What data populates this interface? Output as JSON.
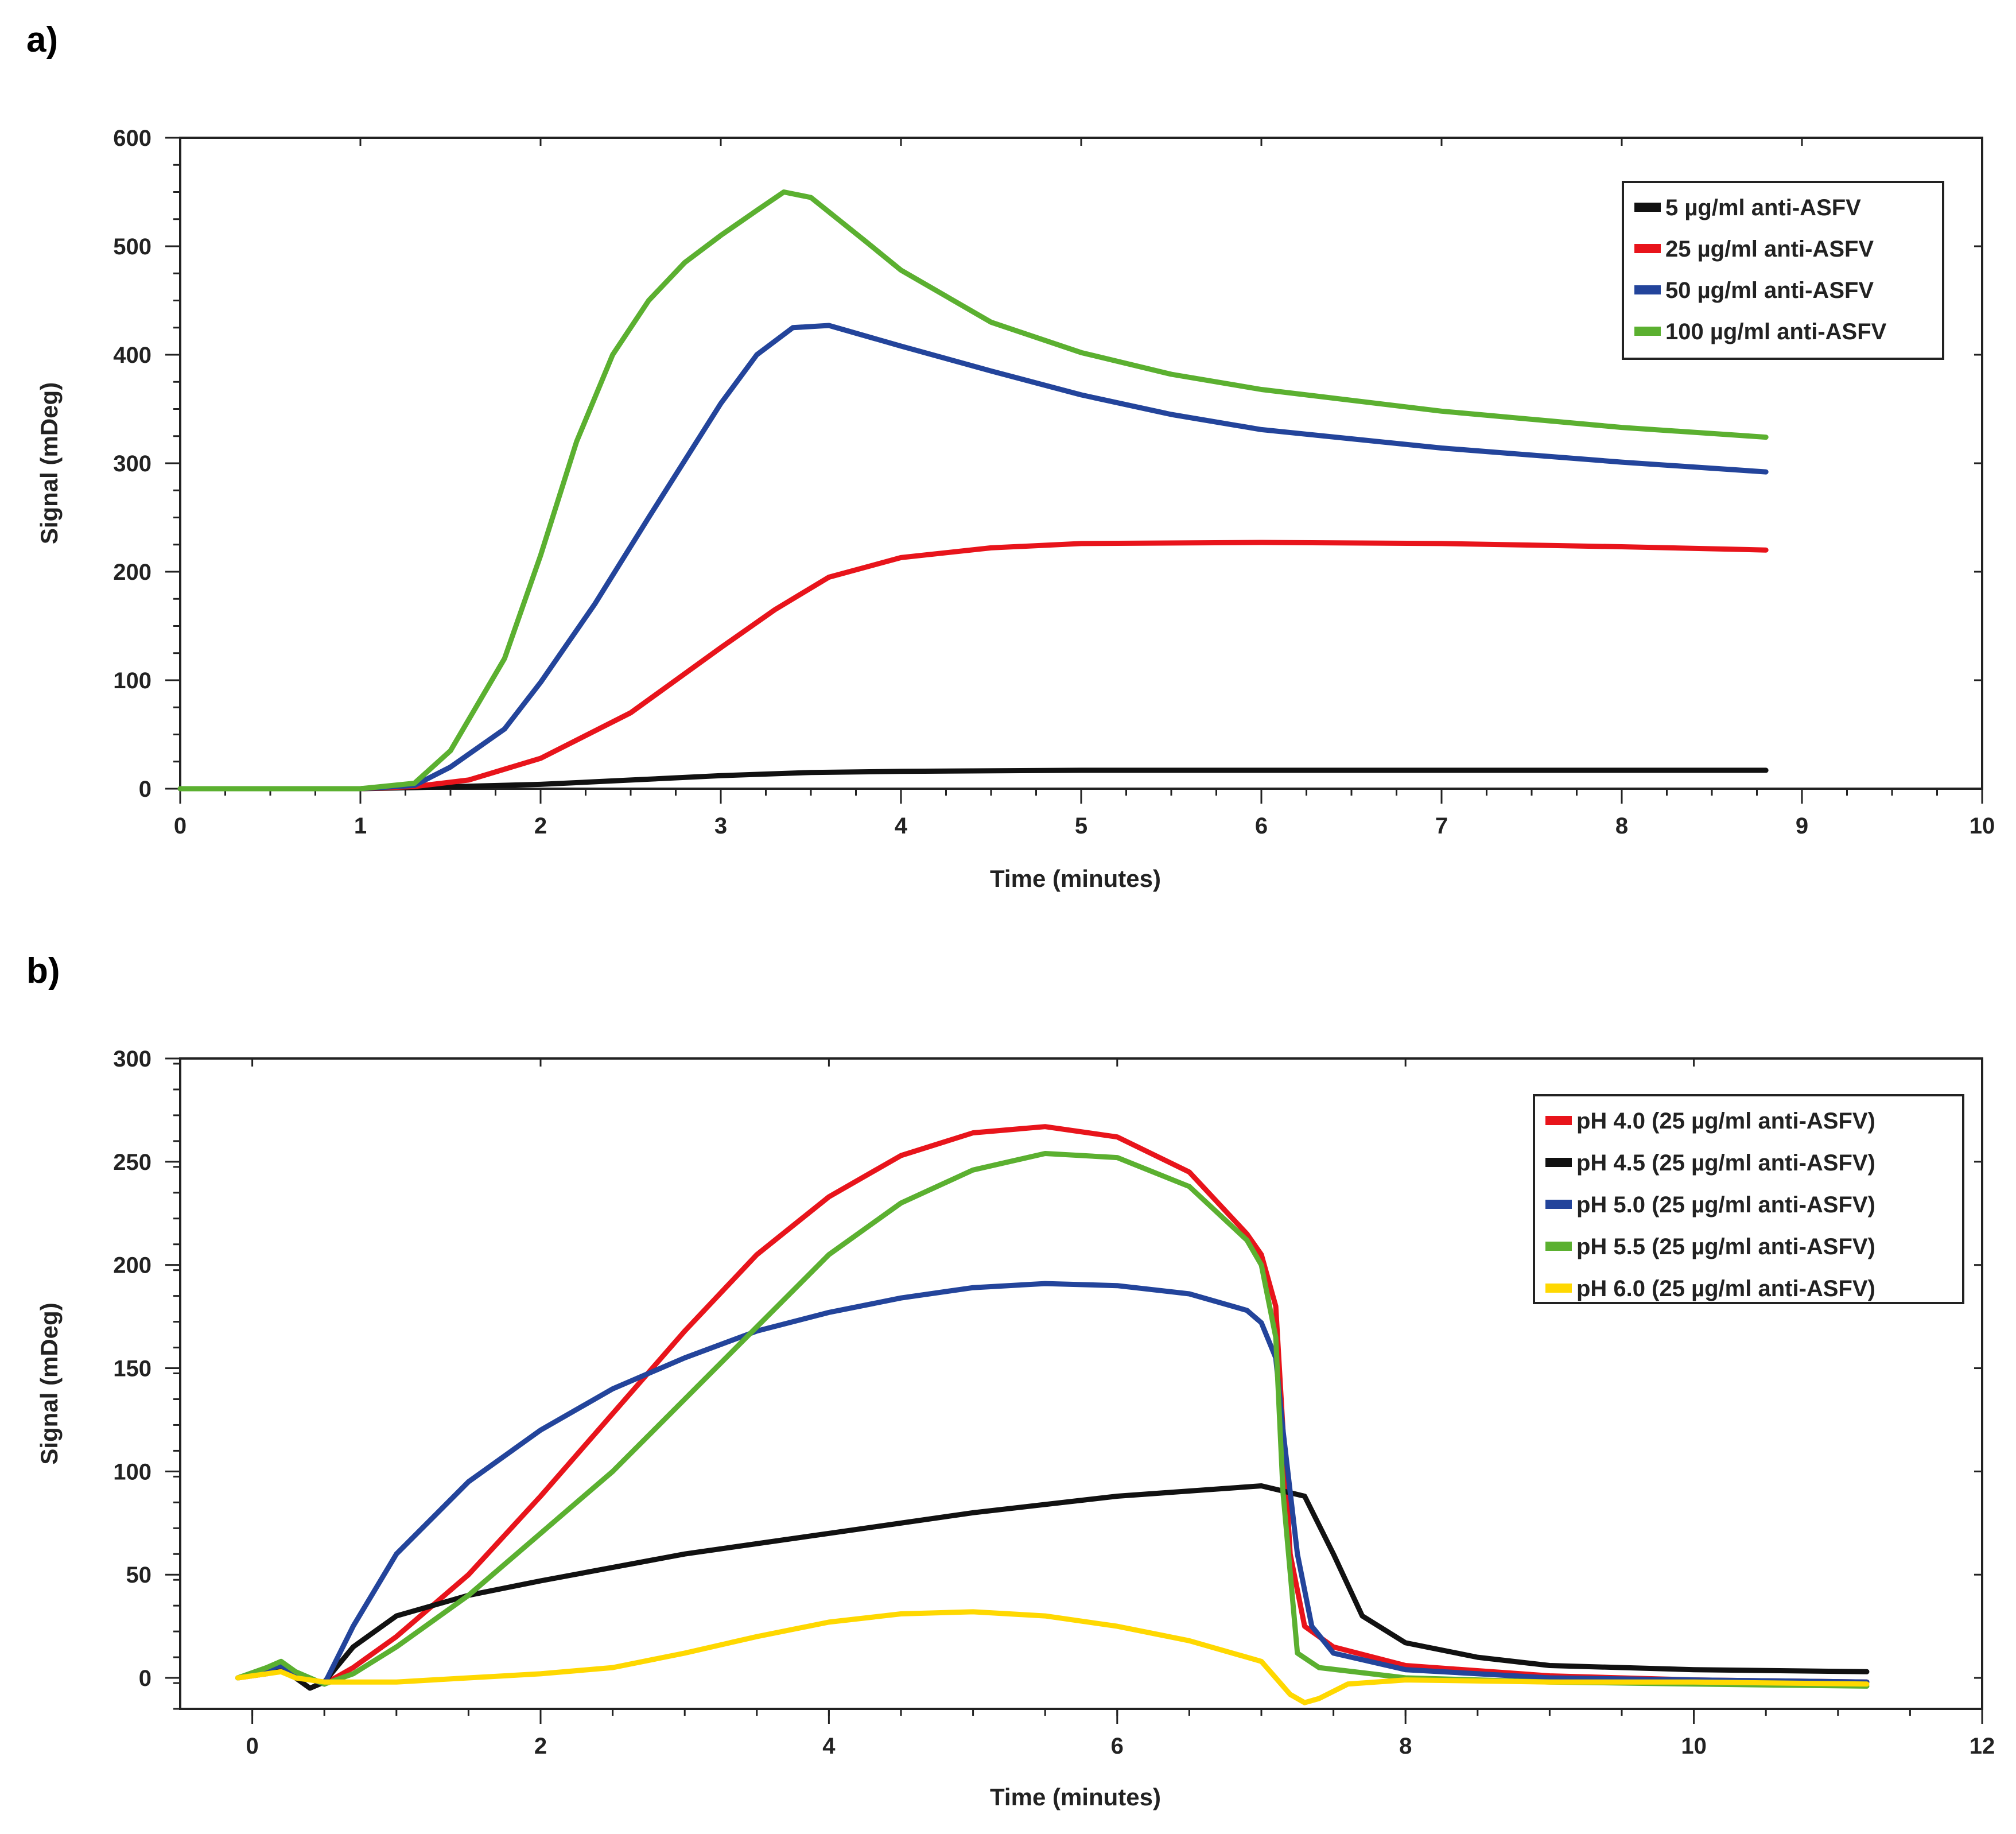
{
  "chart_data": [
    {
      "type": "line",
      "panel_label": "a)",
      "title": "",
      "xlabel": "Time (minutes)",
      "ylabel": "Signal (mDeg)",
      "xlim": [
        0,
        10
      ],
      "ylim": [
        0,
        600
      ],
      "xticks": [
        "0",
        "1",
        "2",
        "3",
        "4",
        "5",
        "6",
        "7",
        "8",
        "9",
        "10"
      ],
      "yticks": [
        "0",
        "100",
        "200",
        "300",
        "400",
        "500",
        "600"
      ],
      "legend_position": "top-right",
      "grid": false,
      "series": [
        {
          "name": "5 µg/ml anti-ASFV",
          "color": "#111111",
          "x": [
            0,
            1.0,
            1.3,
            2.0,
            2.5,
            3.0,
            3.5,
            4.0,
            5.0,
            6.0,
            7.0,
            8.0,
            8.8
          ],
          "y": [
            0,
            0,
            1,
            4,
            8,
            12,
            15,
            16,
            17,
            17,
            17,
            17,
            17
          ]
        },
        {
          "name": "25 µg/ml anti-ASFV",
          "color": "#e8141b",
          "x": [
            0,
            1.0,
            1.3,
            1.6,
            2.0,
            2.5,
            3.0,
            3.3,
            3.6,
            4.0,
            4.5,
            5.0,
            6.0,
            7.0,
            8.0,
            8.8
          ],
          "y": [
            0,
            0,
            2,
            8,
            28,
            70,
            130,
            165,
            195,
            213,
            222,
            226,
            227,
            226,
            223,
            220
          ]
        },
        {
          "name": "50 µg/ml anti-ASFV",
          "color": "#23449b",
          "x": [
            0,
            1.0,
            1.3,
            1.5,
            1.8,
            2.0,
            2.3,
            2.6,
            3.0,
            3.2,
            3.4,
            3.6,
            4.0,
            4.5,
            5.0,
            5.5,
            6.0,
            7.0,
            8.0,
            8.8
          ],
          "y": [
            0,
            0,
            3,
            20,
            55,
            98,
            170,
            250,
            355,
            400,
            425,
            427,
            408,
            385,
            363,
            345,
            331,
            314,
            301,
            292
          ]
        },
        {
          "name": "100 µg/ml anti-ASFV",
          "color": "#5bb030",
          "x": [
            0,
            1.0,
            1.3,
            1.5,
            1.8,
            2.0,
            2.2,
            2.4,
            2.6,
            2.8,
            3.0,
            3.2,
            3.35,
            3.5,
            3.8,
            4.0,
            4.5,
            5.0,
            5.5,
            6.0,
            7.0,
            8.0,
            8.8
          ],
          "y": [
            0,
            0,
            5,
            35,
            120,
            215,
            320,
            400,
            450,
            485,
            510,
            533,
            550,
            545,
            505,
            478,
            430,
            402,
            382,
            368,
            348,
            333,
            324
          ]
        }
      ]
    },
    {
      "type": "line",
      "panel_label": "b)",
      "title": "",
      "xlabel": "Time (minutes)",
      "ylabel": "Signal (mDeg)",
      "xlim": [
        -0.5,
        12
      ],
      "ylim": [
        -15,
        300
      ],
      "xticks": [
        "0",
        "2",
        "4",
        "6",
        "8",
        "10",
        "12"
      ],
      "yticks": [
        "0",
        "50",
        "100",
        "150",
        "200",
        "250",
        "300"
      ],
      "legend_position": "top-right",
      "grid": false,
      "series": [
        {
          "name": "pH 4.0 (25 µg/ml anti-ASFV)",
          "color": "#e8141b",
          "x": [
            -0.1,
            0.1,
            0.2,
            0.3,
            0.5,
            0.7,
            1.0,
            1.5,
            2.0,
            2.5,
            3.0,
            3.5,
            4.0,
            4.5,
            5.0,
            5.5,
            6.0,
            6.5,
            6.9,
            7.0,
            7.1,
            7.15,
            7.2,
            7.3,
            7.5,
            8.0,
            9.0,
            10.0,
            11.2
          ],
          "y": [
            0,
            2,
            4,
            2,
            -3,
            5,
            20,
            50,
            88,
            128,
            168,
            205,
            233,
            253,
            264,
            267,
            262,
            245,
            215,
            205,
            180,
            120,
            60,
            25,
            15,
            6,
            1,
            -1,
            -2
          ]
        },
        {
          "name": "pH 4.5 (25 µg/ml anti-ASFV)",
          "color": "#111111",
          "x": [
            -0.1,
            0.1,
            0.2,
            0.3,
            0.4,
            0.5,
            0.7,
            1.0,
            1.5,
            2.0,
            3.0,
            4.0,
            5.0,
            6.0,
            7.0,
            7.3,
            7.5,
            7.7,
            8.0,
            8.5,
            9.0,
            10.0,
            11.2
          ],
          "y": [
            0,
            3,
            6,
            0,
            -5,
            -2,
            15,
            30,
            40,
            47,
            60,
            70,
            80,
            88,
            93,
            88,
            60,
            30,
            17,
            10,
            6,
            4,
            3
          ]
        },
        {
          "name": "pH 5.0 (25 µg/ml anti-ASFV)",
          "color": "#23449b",
          "x": [
            -0.1,
            0.1,
            0.2,
            0.3,
            0.5,
            0.7,
            1.0,
            1.5,
            2.0,
            2.5,
            3.0,
            3.5,
            4.0,
            4.5,
            5.0,
            5.5,
            6.0,
            6.5,
            6.9,
            7.0,
            7.1,
            7.15,
            7.25,
            7.35,
            7.5,
            8.0,
            9.0,
            10.0,
            11.2
          ],
          "y": [
            0,
            4,
            6,
            2,
            -3,
            25,
            60,
            95,
            120,
            140,
            155,
            168,
            177,
            184,
            189,
            191,
            190,
            186,
            178,
            172,
            155,
            120,
            60,
            25,
            12,
            4,
            0,
            -1,
            -2
          ]
        },
        {
          "name": "pH 5.5 (25 µg/ml anti-ASFV)",
          "color": "#5bb030",
          "x": [
            -0.1,
            0.1,
            0.2,
            0.3,
            0.5,
            0.7,
            1.0,
            1.5,
            2.0,
            2.5,
            3.0,
            3.5,
            4.0,
            4.5,
            5.0,
            5.5,
            6.0,
            6.5,
            6.9,
            7.0,
            7.1,
            7.15,
            7.25,
            7.4,
            8.0,
            9.0,
            10.0,
            11.2
          ],
          "y": [
            0,
            5,
            8,
            3,
            -3,
            2,
            15,
            40,
            70,
            100,
            135,
            170,
            205,
            230,
            246,
            254,
            252,
            238,
            212,
            200,
            165,
            90,
            12,
            5,
            0,
            -2,
            -3,
            -4
          ]
        },
        {
          "name": "pH 6.0 (25 µg/ml anti-ASFV)",
          "color": "#ffd800",
          "x": [
            -0.1,
            0.1,
            0.2,
            0.3,
            0.5,
            1.0,
            1.5,
            2.0,
            2.5,
            3.0,
            3.5,
            4.0,
            4.5,
            5.0,
            5.5,
            6.0,
            6.5,
            6.8,
            7.0,
            7.1,
            7.2,
            7.3,
            7.4,
            7.6,
            8.0,
            9.0,
            10.0,
            11.2
          ],
          "y": [
            0,
            2,
            3,
            0,
            -2,
            -2,
            0,
            2,
            5,
            12,
            20,
            27,
            31,
            32,
            30,
            25,
            18,
            12,
            8,
            0,
            -8,
            -12,
            -10,
            -3,
            -1,
            -2,
            -2,
            -3
          ]
        }
      ]
    }
  ]
}
